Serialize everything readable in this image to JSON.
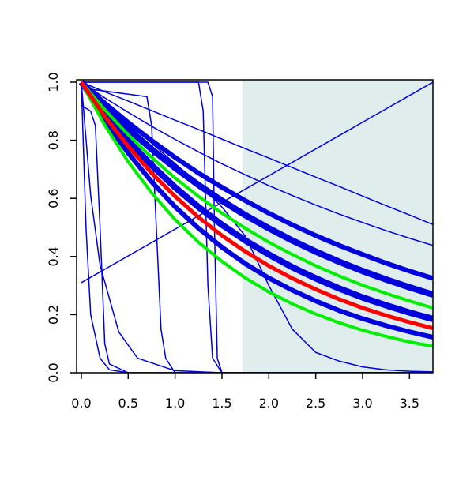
{
  "chart_data": {
    "type": "line",
    "x": [
      0,
      0.25,
      0.5,
      0.75,
      1,
      1.25,
      1.5,
      1.75,
      2,
      2.25,
      2.5,
      2.75,
      3,
      3.25,
      3.5,
      3.75
    ],
    "xlim": [
      -0.05,
      3.75
    ],
    "ylim": [
      0,
      1
    ],
    "xticks": [
      {
        "value": 0,
        "label": "0.0"
      },
      0.5,
      {
        "value": 1,
        "label": "1.0"
      },
      1.5,
      {
        "value": 2,
        "label": "2.0"
      },
      2.5,
      {
        "value": 3,
        "label": "3.0"
      },
      3.5
    ],
    "yticks": [
      {
        "value": 0,
        "label": "0.0"
      },
      0.2,
      0.4,
      0.6,
      0.8,
      {
        "value": 1,
        "label": "1.0"
      }
    ],
    "shaded_region": {
      "x": [
        1.72,
        3.75
      ],
      "color": "#e0eded"
    },
    "series": [
      {
        "color": "#0000dd",
        "linewidth": 1.5,
        "values": [
          1,
          0.967,
          0.935,
          0.902,
          0.869,
          0.837,
          0.804,
          0.771,
          0.739,
          0.706,
          0.673,
          0.641,
          0.608,
          0.575,
          0.543,
          0.51
        ]
      },
      {
        "color": "#0000dd",
        "linewidth": 1.5,
        "values": [
          1,
          0.946,
          0.896,
          0.848,
          0.803,
          0.76,
          0.719,
          0.681,
          0.644,
          0.61,
          0.577,
          0.546,
          0.517,
          0.489,
          0.463,
          0.438
        ]
      },
      {
        "color": "#0000dd",
        "linewidth": 6,
        "values": [
          1,
          0.928,
          0.861,
          0.799,
          0.741,
          0.687,
          0.638,
          0.592,
          0.549,
          0.509,
          0.472,
          0.438,
          0.407,
          0.377,
          0.35,
          0.325
        ]
      },
      {
        "color": "#0000dd",
        "linewidth": 8,
        "values": [
          1,
          0.916,
          0.839,
          0.769,
          0.705,
          0.646,
          0.592,
          0.542,
          0.497,
          0.455,
          0.417,
          0.382,
          0.35,
          0.321,
          0.294,
          0.269
        ]
      },
      {
        "color": "#0000dd",
        "linewidth": 8,
        "values": [
          1,
          0.894,
          0.798,
          0.714,
          0.638,
          0.57,
          0.509,
          0.455,
          0.407,
          0.363,
          0.325,
          0.29,
          0.259,
          0.232,
          0.207,
          0.185
        ]
      },
      {
        "color": "#0000dd",
        "linewidth": 6,
        "values": [
          1,
          0.869,
          0.756,
          0.657,
          0.571,
          0.497,
          0.432,
          0.375,
          0.326,
          0.284,
          0.247,
          0.214,
          0.186,
          0.162,
          0.141,
          0.122
        ]
      },
      {
        "color": "#0000dd",
        "linewidth": 1.5,
        "values": [
          0.31,
          0.356,
          0.402,
          0.448,
          0.494,
          0.54,
          0.586,
          0.632,
          0.678,
          0.724,
          0.77,
          0.816,
          0.862,
          0.908,
          0.954,
          1.0
        ]
      },
      {
        "color": "#0000dd",
        "linewidth": 1.5,
        "values": [
          1,
          0.93,
          0.86,
          0.79,
          0.72,
          0.65,
          0.57,
          0.47,
          0.3,
          0.15,
          0.07,
          0.04,
          0.02,
          0.01,
          0.005,
          0.003
        ]
      },
      {
        "color": "#0000dd",
        "linewidth": 1.5,
        "x": [
          0,
          0.1,
          0.15,
          0.2,
          0.25,
          0.3,
          0.5,
          3.75
        ],
        "values": [
          0.92,
          0.9,
          0.85,
          0.5,
          0.1,
          0.03,
          0,
          0
        ]
      },
      {
        "color": "#0000dd",
        "linewidth": 1.5,
        "x": [
          0,
          0.7,
          0.75,
          0.8,
          0.85,
          0.9,
          1,
          3.75
        ],
        "values": [
          0.98,
          0.95,
          0.85,
          0.5,
          0.15,
          0.05,
          0,
          0
        ]
      },
      {
        "color": "#0000dd",
        "linewidth": 1.5,
        "x": [
          0,
          1.25,
          1.3,
          1.35,
          1.4,
          1.5,
          3.75
        ],
        "values": [
          1,
          1,
          0.9,
          0.3,
          0.05,
          0,
          0
        ]
      },
      {
        "color": "#0000dd",
        "linewidth": 1.5,
        "x": [
          0,
          1.35,
          1.4,
          1.42,
          1.45,
          1.5,
          3.75
        ],
        "values": [
          1,
          1,
          0.95,
          0.5,
          0.05,
          0,
          0
        ]
      },
      {
        "color": "#0000dd",
        "linewidth": 1.5,
        "x": [
          0,
          0.05,
          0.1,
          0.2,
          0.3,
          0.5,
          1,
          3.75
        ],
        "values": [
          1,
          0.5,
          0.2,
          0.05,
          0.01,
          0,
          0,
          0
        ]
      },
      {
        "color": "#0000dd",
        "linewidth": 1.5,
        "x": [
          0,
          0.1,
          0.2,
          0.4,
          0.6,
          1,
          1.5,
          3.75
        ],
        "values": [
          1,
          0.61,
          0.37,
          0.14,
          0.05,
          0.007,
          0,
          0
        ]
      },
      {
        "color": "#00ee00",
        "linewidth": 4,
        "values": [
          1,
          0.905,
          0.819,
          0.741,
          0.67,
          0.607,
          0.549,
          0.497,
          0.449,
          0.407,
          0.368,
          0.333,
          0.301,
          0.273,
          0.247,
          0.223
        ]
      },
      {
        "color": "#00ee00",
        "linewidth": 4,
        "values": [
          1,
          0.852,
          0.726,
          0.619,
          0.527,
          0.449,
          0.383,
          0.326,
          0.278,
          0.237,
          0.202,
          0.172,
          0.146,
          0.125,
          0.106,
          0.091
        ]
      },
      {
        "color": "#ff0000",
        "linewidth": 5,
        "values": [
          1,
          0.882,
          0.779,
          0.687,
          0.607,
          0.535,
          0.472,
          0.417,
          0.368,
          0.325,
          0.287,
          0.253,
          0.223,
          0.197,
          0.174,
          0.153
        ]
      }
    ]
  }
}
